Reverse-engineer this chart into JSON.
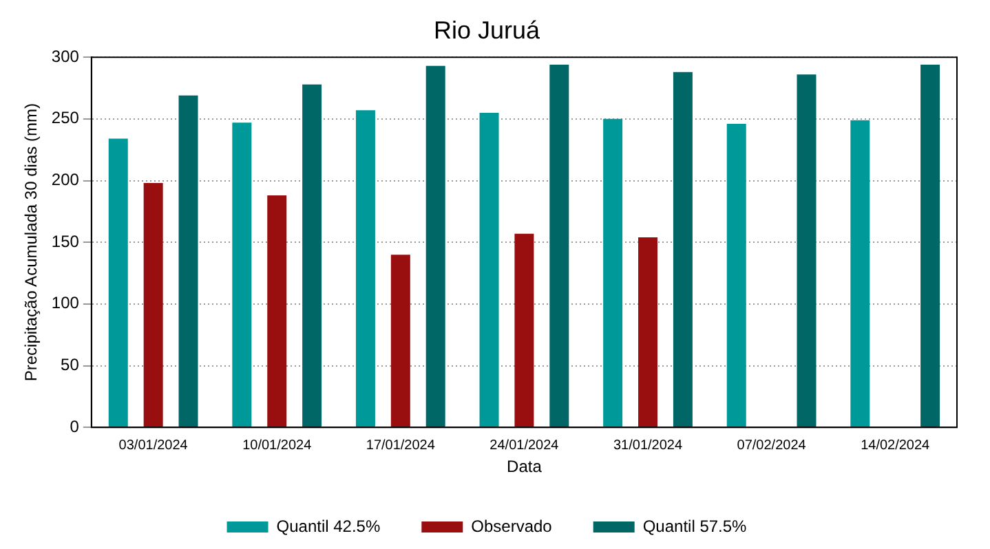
{
  "chart_data": {
    "type": "bar",
    "title": "Rio Juruá",
    "xlabel": "Data",
    "ylabel": "Precipitação Acumulada 30 dias (mm)",
    "categories": [
      "03/01/2024",
      "10/01/2024",
      "17/01/2024",
      "24/01/2024",
      "31/01/2024",
      "07/02/2024",
      "14/02/2024"
    ],
    "series": [
      {
        "name": "Quantil 42.5%",
        "color": "#009999",
        "values": [
          234,
          247,
          257,
          255,
          250,
          246,
          249
        ]
      },
      {
        "name": "Observado",
        "color": "#990f0f",
        "values": [
          198,
          188,
          140,
          157,
          154,
          null,
          null
        ]
      },
      {
        "name": "Quantil 57.5%",
        "color": "#006666",
        "values": [
          269,
          278,
          293,
          294,
          288,
          286,
          294
        ]
      }
    ],
    "ylim": [
      0,
      300
    ],
    "yticks": [
      0,
      50,
      100,
      150,
      200,
      250,
      300
    ],
    "grid": "y",
    "legend": "bottom"
  }
}
